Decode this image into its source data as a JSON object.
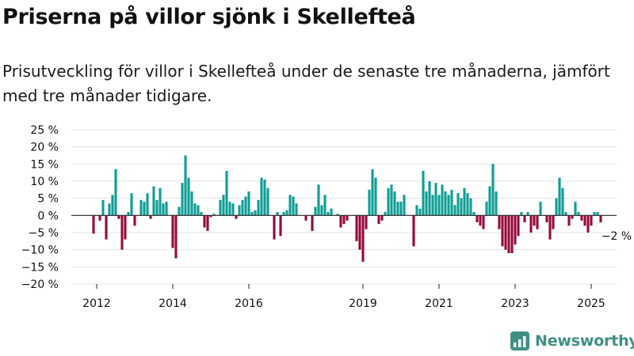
{
  "title": "Priserna på villor sjönk i Skellefteå",
  "subtitle": "Prisutveckling för villor i Skellefteå under de senaste tre månaderna, jämfört med tre månader tidigare.",
  "brand": {
    "name": "Newsworthy",
    "icon": "newsworthy-logo-icon",
    "color": "#3f8f84"
  },
  "colors": {
    "positive": "#0f9e96",
    "negative": "#950a3d",
    "grid": "#e2e2e2",
    "zero": "#222222"
  },
  "chart_data": {
    "type": "bar",
    "title": "",
    "xlabel": "",
    "ylabel": "",
    "ylim": [
      -20,
      25
    ],
    "y_ticks": [
      {
        "value": 25,
        "label": "25 %"
      },
      {
        "value": 20,
        "label": "20 %"
      },
      {
        "value": 15,
        "label": "15 %"
      },
      {
        "value": 10,
        "label": "10 %"
      },
      {
        "value": 5,
        "label": "5 %"
      },
      {
        "value": 0,
        "label": "0 %"
      },
      {
        "value": -5,
        "label": "−5 %"
      },
      {
        "value": -10,
        "label": "−10 %"
      },
      {
        "value": -15,
        "label": "−15 %"
      },
      {
        "value": -20,
        "label": "−20 %"
      }
    ],
    "x_range": [
      "2011-05",
      "2025-09"
    ],
    "x_ticks": [
      {
        "value": "2012-01",
        "label": "2012"
      },
      {
        "value": "2014-01",
        "label": "2014"
      },
      {
        "value": "2016-01",
        "label": "2016"
      },
      {
        "value": "2019-01",
        "label": "2019"
      },
      {
        "value": "2021-01",
        "label": "2021"
      },
      {
        "value": "2023-01",
        "label": "2023"
      },
      {
        "value": "2025-01",
        "label": "2025"
      }
    ],
    "grid": true,
    "last_value_label": "−2 %",
    "series": [
      {
        "values": [
          [
            "2011-12",
            -5.3
          ],
          [
            "2012-02",
            -1.5
          ],
          [
            "2012-03",
            4.5
          ],
          [
            "2012-04",
            -7
          ],
          [
            "2012-05",
            3.5
          ],
          [
            "2012-06",
            6
          ],
          [
            "2012-07",
            13.5
          ],
          [
            "2012-08",
            -1
          ],
          [
            "2012-09",
            -10
          ],
          [
            "2012-10",
            -7
          ],
          [
            "2012-11",
            1
          ],
          [
            "2012-12",
            6.5
          ],
          [
            "2013-01",
            -3
          ],
          [
            "2013-03",
            4.5
          ],
          [
            "2013-04",
            4
          ],
          [
            "2013-05",
            6.5
          ],
          [
            "2013-06",
            -1
          ],
          [
            "2013-07",
            8.5
          ],
          [
            "2013-08",
            4.5
          ],
          [
            "2013-09",
            8
          ],
          [
            "2013-10",
            3.5
          ],
          [
            "2013-11",
            4
          ],
          [
            "2014-01",
            -9.5
          ],
          [
            "2014-02",
            -12.5
          ],
          [
            "2014-03",
            2.5
          ],
          [
            "2014-04",
            9.5
          ],
          [
            "2014-05",
            17.5
          ],
          [
            "2014-06",
            11
          ],
          [
            "2014-07",
            7
          ],
          [
            "2014-08",
            3.5
          ],
          [
            "2014-09",
            3
          ],
          [
            "2014-10",
            1
          ],
          [
            "2014-11",
            -3.5
          ],
          [
            "2014-12",
            -4.5
          ],
          [
            "2015-01",
            -0.5
          ],
          [
            "2015-02",
            0.5
          ],
          [
            "2015-04",
            4.5
          ],
          [
            "2015-05",
            6
          ],
          [
            "2015-06",
            13
          ],
          [
            "2015-07",
            4
          ],
          [
            "2015-08",
            3.5
          ],
          [
            "2015-09",
            -1
          ],
          [
            "2015-10",
            3
          ],
          [
            "2015-11",
            4.5
          ],
          [
            "2015-12",
            5.5
          ],
          [
            "2016-01",
            7
          ],
          [
            "2016-02",
            1
          ],
          [
            "2016-03",
            1.5
          ],
          [
            "2016-04",
            4.5
          ],
          [
            "2016-05",
            11
          ],
          [
            "2016-06",
            10.5
          ],
          [
            "2016-07",
            8
          ],
          [
            "2016-09",
            -7
          ],
          [
            "2016-10",
            1
          ],
          [
            "2016-11",
            -6
          ],
          [
            "2016-12",
            1
          ],
          [
            "2017-01",
            1.5
          ],
          [
            "2017-02",
            6
          ],
          [
            "2017-03",
            5.5
          ],
          [
            "2017-04",
            3.5
          ],
          [
            "2017-07",
            -1.5
          ],
          [
            "2017-09",
            -4.5
          ],
          [
            "2017-10",
            2.5
          ],
          [
            "2017-11",
            9
          ],
          [
            "2017-12",
            3
          ],
          [
            "2018-01",
            6
          ],
          [
            "2018-02",
            1
          ],
          [
            "2018-03",
            2
          ],
          [
            "2018-05",
            0.5
          ],
          [
            "2018-06",
            -3.5
          ],
          [
            "2018-07",
            -2.5
          ],
          [
            "2018-08",
            -1.5
          ],
          [
            "2018-11",
            -7.5
          ],
          [
            "2018-12",
            -10
          ],
          [
            "2019-01",
            -13.5
          ],
          [
            "2019-02",
            -4
          ],
          [
            "2019-03",
            7.5
          ],
          [
            "2019-04",
            13.5
          ],
          [
            "2019-05",
            11
          ],
          [
            "2019-06",
            -2.5
          ],
          [
            "2019-07",
            -1.5
          ],
          [
            "2019-08",
            1
          ],
          [
            "2019-09",
            8
          ],
          [
            "2019-10",
            9
          ],
          [
            "2019-11",
            7
          ],
          [
            "2019-12",
            4
          ],
          [
            "2020-01",
            4
          ],
          [
            "2020-02",
            6
          ],
          [
            "2020-05",
            -9
          ],
          [
            "2020-06",
            3
          ],
          [
            "2020-07",
            2
          ],
          [
            "2020-08",
            13
          ],
          [
            "2020-09",
            7
          ],
          [
            "2020-10",
            10
          ],
          [
            "2020-11",
            6
          ],
          [
            "2020-12",
            9.5
          ],
          [
            "2021-01",
            6
          ],
          [
            "2021-02",
            9
          ],
          [
            "2021-03",
            7
          ],
          [
            "2021-04",
            6
          ],
          [
            "2021-05",
            7.5
          ],
          [
            "2021-06",
            3
          ],
          [
            "2021-07",
            6.5
          ],
          [
            "2021-08",
            5
          ],
          [
            "2021-09",
            8
          ],
          [
            "2021-10",
            6.5
          ],
          [
            "2021-11",
            5
          ],
          [
            "2021-12",
            1
          ],
          [
            "2022-01",
            -2
          ],
          [
            "2022-02",
            -3
          ],
          [
            "2022-03",
            -4
          ],
          [
            "2022-04",
            4
          ],
          [
            "2022-05",
            8.5
          ],
          [
            "2022-06",
            15
          ],
          [
            "2022-07",
            7
          ],
          [
            "2022-08",
            -4
          ],
          [
            "2022-09",
            -9
          ],
          [
            "2022-10",
            -10
          ],
          [
            "2022-11",
            -11
          ],
          [
            "2022-12",
            -11
          ],
          [
            "2023-01",
            -8.5
          ],
          [
            "2023-02",
            -6
          ],
          [
            "2023-03",
            1
          ],
          [
            "2023-04",
            -2
          ],
          [
            "2023-05",
            1
          ],
          [
            "2023-06",
            -5
          ],
          [
            "2023-07",
            -3
          ],
          [
            "2023-08",
            -4
          ],
          [
            "2023-09",
            4
          ],
          [
            "2023-11",
            -2
          ],
          [
            "2023-12",
            -7
          ],
          [
            "2024-01",
            -4
          ],
          [
            "2024-02",
            5
          ],
          [
            "2024-03",
            11
          ],
          [
            "2024-04",
            8
          ],
          [
            "2024-05",
            1
          ],
          [
            "2024-06",
            -3
          ],
          [
            "2024-07",
            -1
          ],
          [
            "2024-08",
            4
          ],
          [
            "2024-09",
            1
          ],
          [
            "2024-10",
            -1.5
          ],
          [
            "2024-11",
            -3
          ],
          [
            "2024-12",
            -5
          ],
          [
            "2025-01",
            -3
          ],
          [
            "2025-02",
            1
          ],
          [
            "2025-03",
            1
          ],
          [
            "2025-04",
            -2
          ]
        ]
      }
    ]
  }
}
